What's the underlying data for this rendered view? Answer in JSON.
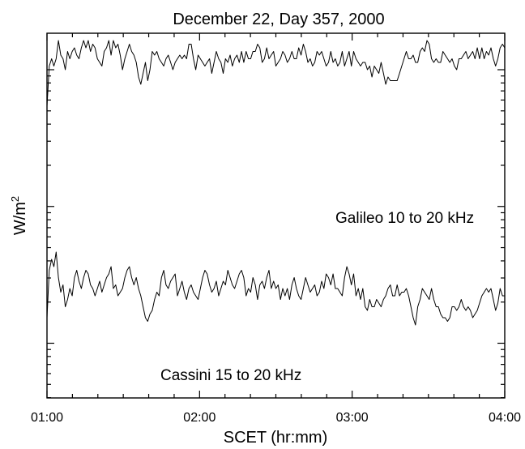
{
  "chart_data": {
    "type": "line",
    "title": "December 22, Day 357, 2000",
    "xlabel": "SCET (hr:mm)",
    "ylabel_base": "W/m",
    "ylabel_sup": "2",
    "x_ticks": [
      "01:00",
      "02:00",
      "03:00",
      "04:00"
    ],
    "x_range_hours": [
      1.0,
      4.0
    ],
    "y_range": [
      0,
      1
    ],
    "y_log_scale": true,
    "y_tick_labels_shown": false,
    "grid": false,
    "legend": "inline annotations",
    "series": [
      {
        "name": "Galileo 10 to 20 kHz",
        "x_start_hours": 1.0,
        "x_step_hours": 0.015,
        "values": [
          0.8,
          0.91,
          0.93,
          0.91,
          0.93,
          0.98,
          0.94,
          0.93,
          0.9,
          0.95,
          0.93,
          0.95,
          0.96,
          0.94,
          0.93,
          0.96,
          0.98,
          0.96,
          0.98,
          0.95,
          0.97,
          0.96,
          0.93,
          0.92,
          0.91,
          0.95,
          0.96,
          0.98,
          0.94,
          0.98,
          0.96,
          0.97,
          0.94,
          0.9,
          0.93,
          0.95,
          0.97,
          0.95,
          0.94,
          0.92,
          0.88,
          0.86,
          0.89,
          0.92,
          0.87,
          0.9,
          0.95,
          0.94,
          0.95,
          0.93,
          0.92,
          0.91,
          0.93,
          0.94,
          0.92,
          0.9,
          0.92,
          0.93,
          0.94,
          0.93,
          0.94,
          0.93,
          0.97,
          0.97,
          0.93,
          0.9,
          0.94,
          0.93,
          0.92,
          0.91,
          0.92,
          0.93,
          0.89,
          0.92,
          0.95,
          0.93,
          0.92,
          0.89,
          0.93,
          0.92,
          0.94,
          0.91,
          0.93,
          0.94,
          0.92,
          0.95,
          0.92,
          0.95,
          0.93,
          0.93,
          0.95,
          0.95,
          0.97,
          0.96,
          0.92,
          0.93,
          0.96,
          0.93,
          0.94,
          0.95,
          0.91,
          0.92,
          0.93,
          0.95,
          0.94,
          0.92,
          0.93,
          0.95,
          0.93,
          0.93,
          0.96,
          0.94,
          0.97,
          0.95,
          0.92,
          0.93,
          0.91,
          0.92,
          0.95,
          0.94,
          0.95,
          0.93,
          0.91,
          0.92,
          0.95,
          0.92,
          0.93,
          0.91,
          0.92,
          0.95,
          0.91,
          0.93,
          0.95,
          0.91,
          0.95,
          0.93,
          0.92,
          0.91,
          0.92,
          0.92,
          0.9,
          0.91,
          0.88,
          0.91,
          0.9,
          0.89,
          0.92,
          0.89,
          0.86,
          0.88,
          0.87,
          0.87,
          0.87,
          0.87,
          0.89,
          0.91,
          0.93,
          0.95,
          0.93,
          0.93,
          0.94,
          0.92,
          0.92,
          0.95,
          0.96,
          0.95,
          0.98,
          0.97,
          0.93,
          0.92,
          0.93,
          0.92,
          0.92,
          0.95,
          0.94,
          0.93,
          0.92,
          0.93,
          0.91,
          0.9,
          0.93,
          0.93,
          0.94,
          0.95,
          0.93,
          0.94,
          0.95,
          0.93,
          0.96,
          0.93,
          0.96,
          0.93,
          0.95,
          0.94,
          0.96,
          0.93,
          0.91,
          0.93,
          0.96,
          0.97,
          0.96,
          0.98,
          0.95,
          0.94,
          0.92,
          0.93,
          0.95,
          0.94,
          0.93,
          0.92,
          0.93,
          0.94,
          0.92,
          0.93,
          0.91,
          0.9,
          0.92,
          0.95,
          0.96,
          0.98,
          0.97,
          0.95,
          0.93,
          0.93,
          0.94,
          0.96,
          0.97,
          0.96,
          0.98,
          0.96,
          0.95,
          0.97,
          0.98,
          0.96,
          0.99,
          0.97
        ]
      },
      {
        "name": "Cassini 15 to 20 kHz",
        "x_start_hours": 1.0,
        "x_step_hours": 0.015,
        "values": [
          0.22,
          0.35,
          0.38,
          0.36,
          0.4,
          0.33,
          0.29,
          0.31,
          0.25,
          0.27,
          0.3,
          0.28,
          0.33,
          0.35,
          0.32,
          0.3,
          0.33,
          0.35,
          0.34,
          0.31,
          0.3,
          0.28,
          0.3,
          0.32,
          0.29,
          0.31,
          0.33,
          0.34,
          0.36,
          0.3,
          0.31,
          0.28,
          0.29,
          0.3,
          0.33,
          0.35,
          0.36,
          0.33,
          0.31,
          0.33,
          0.3,
          0.28,
          0.25,
          0.22,
          0.21,
          0.23,
          0.24,
          0.27,
          0.29,
          0.28,
          0.33,
          0.35,
          0.31,
          0.3,
          0.32,
          0.33,
          0.34,
          0.28,
          0.3,
          0.32,
          0.29,
          0.27,
          0.3,
          0.31,
          0.29,
          0.28,
          0.27,
          0.3,
          0.33,
          0.35,
          0.34,
          0.31,
          0.29,
          0.3,
          0.32,
          0.28,
          0.3,
          0.32,
          0.31,
          0.35,
          0.33,
          0.31,
          0.3,
          0.32,
          0.34,
          0.35,
          0.33,
          0.28,
          0.3,
          0.29,
          0.33,
          0.31,
          0.27,
          0.31,
          0.32,
          0.3,
          0.33,
          0.35,
          0.3,
          0.32,
          0.3,
          0.31,
          0.27,
          0.3,
          0.28,
          0.3,
          0.27,
          0.31,
          0.33,
          0.3,
          0.28,
          0.27,
          0.3,
          0.33,
          0.31,
          0.29,
          0.3,
          0.31,
          0.28,
          0.29,
          0.32,
          0.3,
          0.34,
          0.33,
          0.31,
          0.34,
          0.3,
          0.3,
          0.29,
          0.28,
          0.33,
          0.36,
          0.34,
          0.31,
          0.34,
          0.28,
          0.3,
          0.27,
          0.3,
          0.25,
          0.24,
          0.27,
          0.25,
          0.25,
          0.27,
          0.26,
          0.25,
          0.27,
          0.28,
          0.3,
          0.31,
          0.28,
          0.28,
          0.31,
          0.28,
          0.29,
          0.29,
          0.3,
          0.28,
          0.25,
          0.22,
          0.2,
          0.25,
          0.27,
          0.3,
          0.29,
          0.28,
          0.27,
          0.3,
          0.27,
          0.25,
          0.25,
          0.23,
          0.22,
          0.22,
          0.21,
          0.22,
          0.25,
          0.25,
          0.24,
          0.25,
          0.27,
          0.25,
          0.24,
          0.25,
          0.24,
          0.22,
          0.23,
          0.24,
          0.26,
          0.28,
          0.29,
          0.3,
          0.29,
          0.3,
          0.27,
          0.24,
          0.26,
          0.3,
          0.28,
          0.28,
          0.3,
          0.31,
          0.3,
          0.31,
          0.3,
          0.27,
          0.25,
          0.26,
          0.24,
          0.28,
          0.3,
          0.31,
          0.33,
          0.3,
          0.28,
          0.26,
          0.27,
          0.26,
          0.28,
          0.29,
          0.27,
          0.28,
          0.3,
          0.33,
          0.36,
          0.31,
          0.27,
          0.25,
          0.26,
          0.25,
          0.26,
          0.27,
          0.25,
          0.27
        ]
      }
    ]
  }
}
